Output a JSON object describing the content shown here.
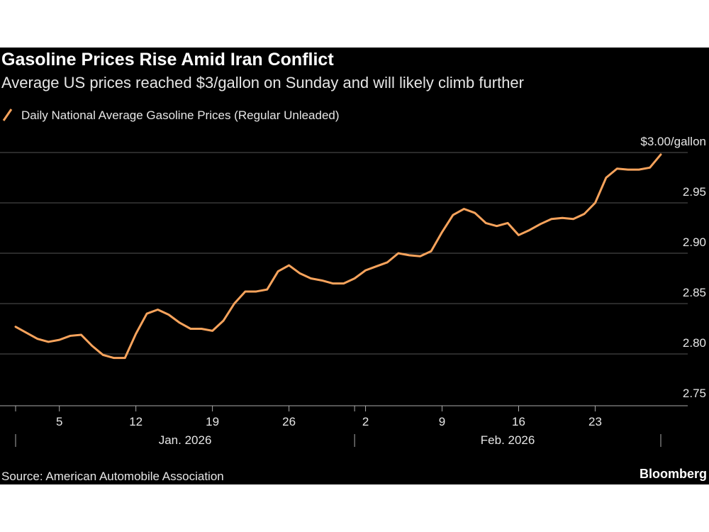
{
  "chart_data": {
    "type": "line",
    "title": "Gasoline Prices Rise Amid Iran Conflict",
    "subtitle": "Average US prices reached $3/gallon on Sunday and will likely climb further",
    "source": "Source: American Automobile Association",
    "brand": "Bloomberg",
    "x": [
      "2026-01-01",
      "2026-01-02",
      "2026-01-03",
      "2026-01-04",
      "2026-01-05",
      "2026-01-06",
      "2026-01-07",
      "2026-01-08",
      "2026-01-09",
      "2026-01-10",
      "2026-01-11",
      "2026-01-12",
      "2026-01-13",
      "2026-01-14",
      "2026-01-15",
      "2026-01-16",
      "2026-01-17",
      "2026-01-18",
      "2026-01-19",
      "2026-01-20",
      "2026-01-21",
      "2026-01-22",
      "2026-01-23",
      "2026-01-24",
      "2026-01-25",
      "2026-01-26",
      "2026-01-27",
      "2026-01-28",
      "2026-01-29",
      "2026-01-30",
      "2026-01-31",
      "2026-02-01",
      "2026-02-02",
      "2026-02-03",
      "2026-02-04",
      "2026-02-05",
      "2026-02-06",
      "2026-02-07",
      "2026-02-08",
      "2026-02-09",
      "2026-02-10",
      "2026-02-11",
      "2026-02-12",
      "2026-02-13",
      "2026-02-14",
      "2026-02-15",
      "2026-02-16",
      "2026-02-17",
      "2026-02-18",
      "2026-02-19",
      "2026-02-20",
      "2026-02-21",
      "2026-02-22",
      "2026-02-23",
      "2026-02-24",
      "2026-02-25",
      "2026-02-26",
      "2026-02-27",
      "2026-02-28",
      "2026-03-01"
    ],
    "series": [
      {
        "name": "Daily National Average Gasoline Prices (Regular Unleaded)",
        "color": "#f7a35c",
        "values": [
          2.827,
          2.821,
          2.815,
          2.812,
          2.814,
          2.818,
          2.819,
          2.808,
          2.799,
          2.796,
          2.796,
          2.82,
          2.84,
          2.844,
          2.839,
          2.831,
          2.825,
          2.825,
          2.823,
          2.833,
          2.85,
          2.862,
          2.862,
          2.864,
          2.882,
          2.888,
          2.88,
          2.875,
          2.873,
          2.87,
          2.87,
          2.875,
          2.883,
          2.887,
          2.891,
          2.9,
          2.898,
          2.897,
          2.902,
          2.921,
          2.938,
          2.944,
          2.94,
          2.93,
          2.927,
          2.93,
          2.918,
          2.923,
          2.929,
          2.934,
          2.935,
          2.934,
          2.939,
          2.95,
          2.975,
          2.984,
          2.983,
          2.983,
          2.985,
          2.998
        ]
      }
    ],
    "xlim": [
      "2026-01-01",
      "2026-03-01"
    ],
    "xticks": [
      {
        "value": "2026-01-05",
        "label": "5"
      },
      {
        "value": "2026-01-12",
        "label": "12"
      },
      {
        "value": "2026-01-19",
        "label": "19"
      },
      {
        "value": "2026-01-26",
        "label": "26"
      },
      {
        "value": "2026-02-02",
        "label": "2"
      },
      {
        "value": "2026-02-09",
        "label": "9"
      },
      {
        "value": "2026-02-16",
        "label": "16"
      },
      {
        "value": "2026-02-23",
        "label": "23"
      }
    ],
    "xgroups": [
      {
        "label": "Jan. 2026",
        "start": "2026-01-01",
        "end": "2026-02-01"
      },
      {
        "label": "Feb. 2026",
        "start": "2026-02-01",
        "end": "2026-03-01"
      }
    ],
    "ylim": [
      2.75,
      3
    ],
    "yticks": [
      2.75,
      {
        "value": 2.8,
        "label": "2.80"
      },
      2.85,
      {
        "value": 2.9,
        "label": "2.90"
      },
      2.95,
      {
        "value": 3,
        "label": "$3.00/gallon"
      }
    ],
    "grid": true
  }
}
